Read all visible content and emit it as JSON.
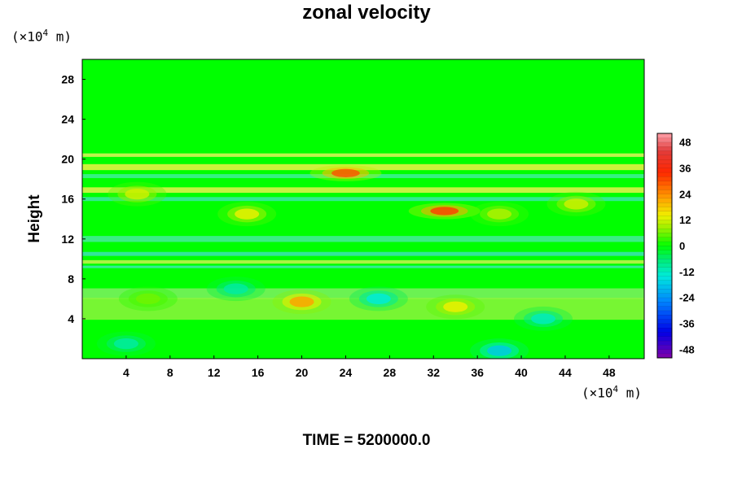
{
  "chart_data": {
    "type": "heatmap",
    "title": "zonal velocity",
    "xlabel": "",
    "ylabel": "Height",
    "x_unit": {
      "prefix": "(×10",
      "exp": "4",
      "suffix": " m)"
    },
    "y_unit": {
      "prefix": "(×10",
      "exp": "4",
      "suffix": " m)"
    },
    "x_ticks": [
      4,
      8,
      12,
      16,
      20,
      24,
      28,
      32,
      36,
      40,
      44,
      48
    ],
    "y_ticks": [
      4,
      8,
      12,
      16,
      20,
      24,
      28
    ],
    "xlim": [
      0,
      51.2
    ],
    "ylim": [
      0,
      30
    ],
    "colorbar": {
      "ticks": [
        48,
        36,
        24,
        12,
        0,
        -12,
        -24,
        -36,
        -48
      ],
      "range": [
        -52,
        52
      ]
    },
    "features": [
      {
        "x": 24,
        "y": 18.6,
        "value": 30
      },
      {
        "x": 33,
        "y": 14.8,
        "value": 32
      },
      {
        "x": 20,
        "y": 5.7,
        "value": 22
      },
      {
        "x": 34,
        "y": 5.2,
        "value": 14
      },
      {
        "x": 15,
        "y": 14.5,
        "value": 14
      },
      {
        "x": 5,
        "y": 16.5,
        "value": 12
      },
      {
        "x": 38,
        "y": 14.5,
        "value": 10
      },
      {
        "x": 45,
        "y": 15.5,
        "value": 12
      },
      {
        "x": 27,
        "y": 6,
        "value": -14
      },
      {
        "x": 38,
        "y": 0.8,
        "value": -18
      },
      {
        "x": 42,
        "y": 4,
        "value": -12
      },
      {
        "x": 14,
        "y": 7,
        "value": -10
      },
      {
        "x": 6,
        "y": 6,
        "value": 6
      },
      {
        "x": 4,
        "y": 1.5,
        "value": -10
      }
    ],
    "time_label": "TIME = 5200000.0"
  }
}
